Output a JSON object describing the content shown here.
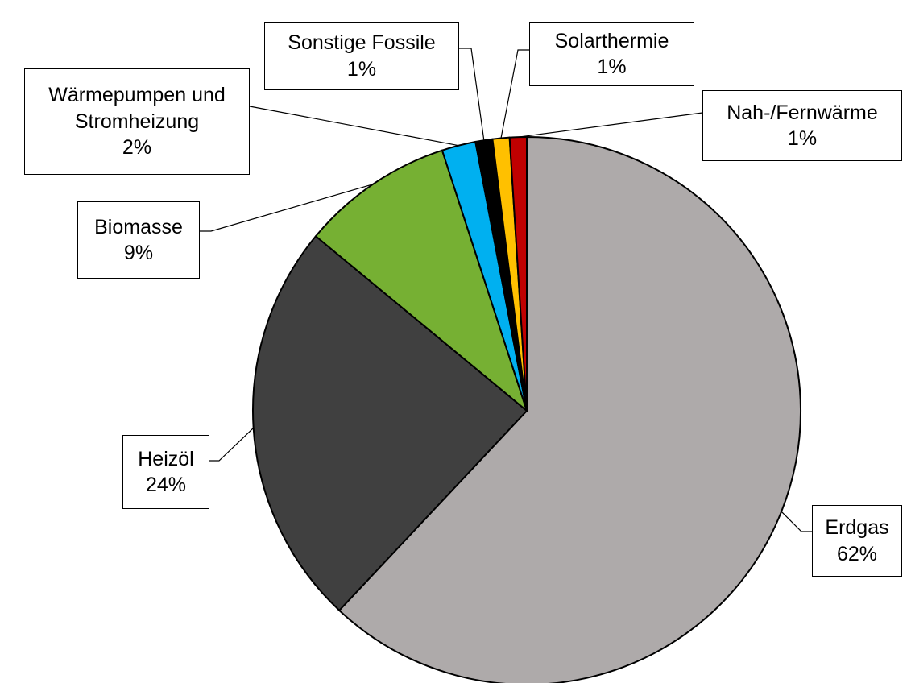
{
  "chart_data": {
    "type": "pie",
    "categories": [
      "Erdgas",
      "Heizöl",
      "Biomasse",
      "Wärmepumpen und Stromheizung",
      "Sonstige Fossile",
      "Solarthermie",
      "Nah-/Fernwärme"
    ],
    "values": [
      62,
      24,
      9,
      2,
      1,
      1,
      1
    ],
    "value_labels": [
      "62%",
      "24%",
      "9%",
      "2%",
      "1%",
      "1%",
      "1%"
    ],
    "colors": [
      "#aeaaaa",
      "#404040",
      "#76b033",
      "#00b0f0",
      "#000000",
      "#ffc000",
      "#c00000"
    ]
  }
}
